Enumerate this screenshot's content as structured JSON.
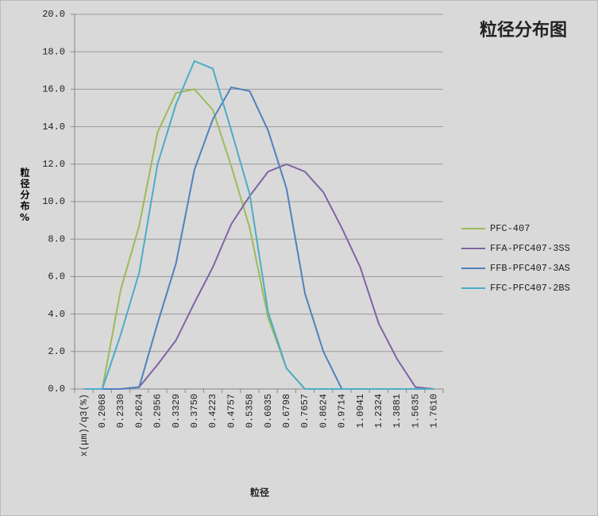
{
  "chart_data": {
    "type": "line",
    "title": "粒径分布图",
    "x_label": "粒径",
    "y_label": "粒径分布%",
    "categories": [
      "x(μm)/q3(%)",
      "0.2068",
      "0.2330",
      "0.2624",
      "0.2956",
      "0.3329",
      "0.3750",
      "0.4223",
      "0.4757",
      "0.5358",
      "0.6035",
      "0.6798",
      "0.7657",
      "0.8624",
      "0.9714",
      "1.0941",
      "1.2324",
      "1.3881",
      "1.5635",
      "1.7610"
    ],
    "series": [
      {
        "name": "PFC-407",
        "color": "#9bbb59",
        "values": [
          0,
          0,
          5.3,
          8.7,
          13.7,
          15.8,
          16.0,
          14.9,
          11.9,
          8.6,
          3.8,
          1.1,
          0,
          0,
          0,
          0,
          0,
          0,
          0,
          0
        ]
      },
      {
        "name": "FFA-PFC407-3SS",
        "color": "#8064a2",
        "values": [
          0,
          0,
          0,
          0.1,
          1.3,
          2.6,
          4.6,
          6.5,
          8.8,
          10.3,
          11.6,
          12.0,
          11.6,
          10.5,
          8.6,
          6.5,
          3.5,
          1.6,
          0.1,
          0
        ]
      },
      {
        "name": "FFB-PFC407-3AS",
        "color": "#4f81bd",
        "values": [
          0,
          0,
          0,
          0.1,
          3.5,
          6.7,
          11.7,
          14.4,
          16.1,
          15.9,
          13.8,
          10.7,
          5.1,
          2.0,
          0,
          0,
          0,
          0,
          0,
          0
        ]
      },
      {
        "name": "FFC-PFC407-2BS",
        "color": "#4bacc6",
        "values": [
          0,
          0,
          2.9,
          6.2,
          12.0,
          15.2,
          17.5,
          17.1,
          13.8,
          10.4,
          4.1,
          1.1,
          0,
          0,
          0,
          0,
          0,
          0,
          0,
          0
        ]
      }
    ],
    "ylim": [
      0,
      20
    ],
    "yticks": [
      {
        "value": 0,
        "label": "0.0"
      },
      {
        "value": 2,
        "label": "2.0"
      },
      {
        "value": 4,
        "label": "4.0"
      },
      {
        "value": 6,
        "label": "6.0"
      },
      {
        "value": 8,
        "label": "8.0"
      },
      {
        "value": 10,
        "label": "10.0"
      },
      {
        "value": 12,
        "label": "12.0"
      },
      {
        "value": 14,
        "label": "14.0"
      },
      {
        "value": 16,
        "label": "16.0"
      },
      {
        "value": 18,
        "label": "18.0"
      },
      {
        "value": 20,
        "label": "20.0"
      }
    ],
    "grid": true,
    "legend": "right"
  }
}
